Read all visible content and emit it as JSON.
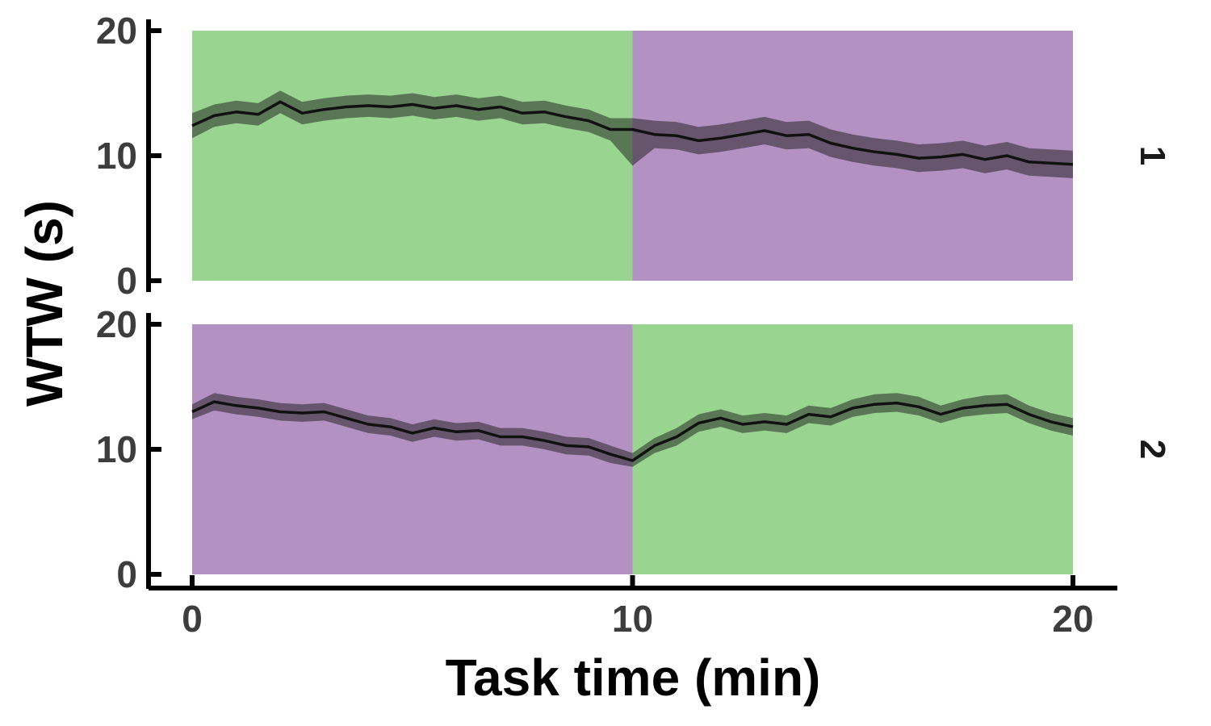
{
  "chart_data": {
    "type": "line",
    "xlabel": "Task time (min)",
    "ylabel": "WTW (s)",
    "xlim": [
      0,
      20
    ],
    "ylim": [
      0,
      20
    ],
    "x_ticks": [
      "0",
      "10",
      "20"
    ],
    "y_ticks": [
      "0",
      "10",
      "20"
    ],
    "grid": false,
    "colors": {
      "green": "#99d591",
      "purple": "#b491c3",
      "line": "#111111",
      "ribbon": "#1a1a1a"
    },
    "x": [
      0,
      0.5,
      1,
      1.5,
      2,
      2.5,
      3,
      3.5,
      4,
      4.5,
      5,
      5.5,
      6,
      6.5,
      7,
      7.5,
      8,
      8.5,
      9,
      9.5,
      10,
      10.5,
      11,
      11.5,
      12,
      12.5,
      13,
      13.5,
      14,
      14.5,
      15,
      15.5,
      16,
      16.5,
      17,
      17.5,
      18,
      18.5,
      19,
      19.5,
      20
    ],
    "panels": [
      {
        "strip": "1",
        "blocks": [
          {
            "from": 0,
            "to": 10,
            "color": "green"
          },
          {
            "from": 10,
            "to": 20,
            "color": "purple"
          }
        ],
        "series": [
          {
            "mean": [
              12.4,
              13.2,
              13.5,
              13.3,
              14.3,
              13.4,
              13.7,
              13.9,
              14.0,
              13.9,
              14.1,
              13.8,
              14.0,
              13.7,
              13.9,
              13.4,
              13.5,
              13.1,
              12.8,
              12.1,
              12.1,
              11.7,
              11.6,
              11.2,
              11.4,
              11.7,
              12.0,
              11.6,
              11.7,
              11.0,
              10.6,
              10.3,
              10.1,
              9.8,
              9.9,
              10.1,
              9.7,
              10.0,
              9.5,
              9.4,
              9.3
            ],
            "lower": [
              11.4,
              12.3,
              12.6,
              12.4,
              13.4,
              12.5,
              12.8,
              13.0,
              13.1,
              13.0,
              13.2,
              12.9,
              13.1,
              12.8,
              13.0,
              12.5,
              12.6,
              12.2,
              11.9,
              11.2,
              9.2,
              10.6,
              10.5,
              10.1,
              10.3,
              10.6,
              10.9,
              10.5,
              10.6,
              9.9,
              9.5,
              9.2,
              9.0,
              8.7,
              8.8,
              9.0,
              8.6,
              8.9,
              8.4,
              8.3,
              8.2
            ],
            "upper": [
              13.4,
              14.1,
              14.4,
              14.2,
              15.2,
              14.3,
              14.6,
              14.8,
              14.9,
              14.8,
              15.0,
              14.7,
              14.9,
              14.6,
              14.8,
              14.3,
              14.4,
              14.0,
              13.7,
              13.0,
              13.0,
              12.8,
              12.7,
              12.3,
              12.5,
              12.8,
              13.1,
              12.7,
              12.8,
              12.1,
              11.7,
              11.4,
              11.2,
              10.9,
              11.0,
              11.2,
              10.8,
              11.1,
              10.6,
              10.5,
              10.4
            ]
          }
        ]
      },
      {
        "strip": "2",
        "blocks": [
          {
            "from": 0,
            "to": 10,
            "color": "purple"
          },
          {
            "from": 10,
            "to": 20,
            "color": "green"
          }
        ],
        "series": [
          {
            "mean": [
              13.0,
              13.8,
              13.5,
              13.3,
              13.0,
              12.9,
              13.0,
              12.5,
              12.0,
              11.8,
              11.3,
              11.7,
              11.4,
              11.5,
              11.0,
              11.0,
              10.7,
              10.3,
              10.2,
              9.6,
              9.1,
              10.3,
              11.0,
              12.1,
              12.5,
              12.0,
              12.2,
              12.0,
              12.8,
              12.6,
              13.3,
              13.6,
              13.7,
              13.4,
              12.8,
              13.3,
              13.5,
              13.6,
              12.8,
              12.2,
              11.8
            ],
            "lower": [
              12.4,
              13.1,
              12.8,
              12.6,
              12.3,
              12.2,
              12.3,
              11.8,
              11.3,
              11.1,
              10.6,
              11.0,
              10.7,
              10.8,
              10.3,
              10.3,
              10.0,
              9.6,
              9.5,
              8.9,
              8.6,
              9.7,
              10.3,
              11.4,
              11.8,
              11.3,
              11.5,
              11.3,
              12.1,
              11.9,
              12.6,
              12.9,
              13.0,
              12.7,
              12.1,
              12.6,
              12.8,
              12.9,
              12.1,
              11.5,
              11.1
            ],
            "upper": [
              13.6,
              14.5,
              14.2,
              14.0,
              13.7,
              13.6,
              13.7,
              13.2,
              12.7,
              12.5,
              12.0,
              12.4,
              12.1,
              12.2,
              11.7,
              11.7,
              11.4,
              11.0,
              10.9,
              10.3,
              9.7,
              10.9,
              11.7,
              12.8,
              13.2,
              12.7,
              12.9,
              12.7,
              13.5,
              13.3,
              14.0,
              14.4,
              14.5,
              14.2,
              13.5,
              14.0,
              14.3,
              14.4,
              13.5,
              12.9,
              12.5
            ]
          }
        ]
      }
    ]
  }
}
